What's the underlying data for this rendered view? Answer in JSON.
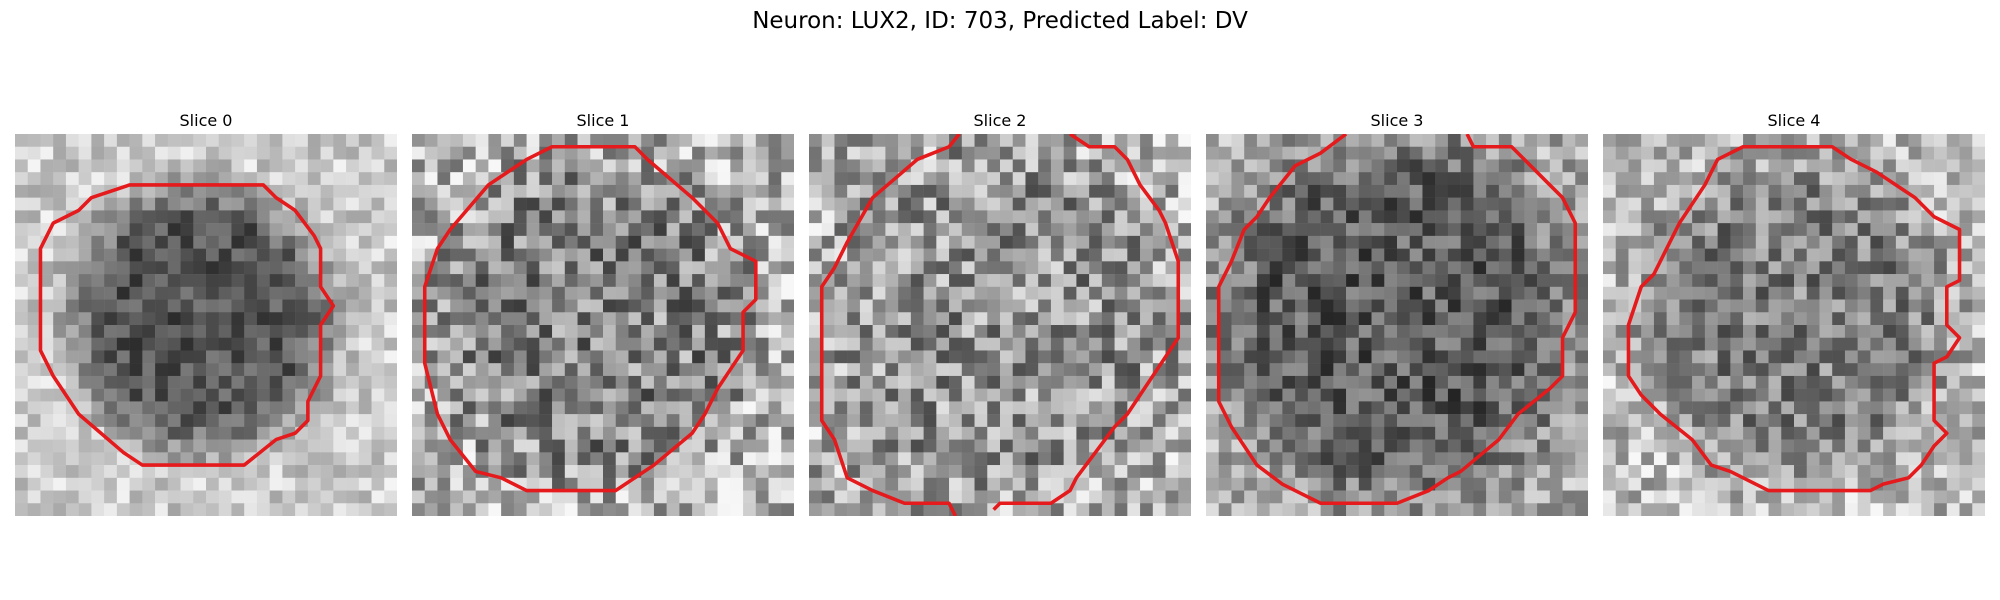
{
  "figure": {
    "title": "Neuron: LUX2, ID: 703, Predicted Label: DV"
  },
  "contour_color": "#e41a1c",
  "colormap": "gray",
  "slices": [
    {
      "label": "Slice 0"
    },
    {
      "label": "Slice 1"
    },
    {
      "label": "Slice 2"
    },
    {
      "label": "Slice 3"
    },
    {
      "label": "Slice 4"
    }
  ]
}
